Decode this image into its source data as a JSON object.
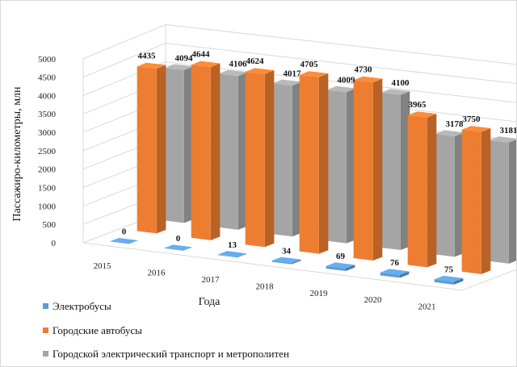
{
  "chart_data": {
    "type": "bar",
    "title": "",
    "xlabel": "Года",
    "ylabel": "Пассажиро-километры, млн",
    "ylim": [
      0,
      5000
    ],
    "yticks": [
      0,
      500,
      1000,
      1500,
      2000,
      2500,
      3000,
      3500,
      4000,
      4500,
      5000
    ],
    "grid": true,
    "legend_position": "bottom-left",
    "categories": [
      "2015",
      "2016",
      "2017",
      "2018",
      "2019",
      "2020",
      "2021"
    ],
    "series": [
      {
        "name": "Электробусы",
        "color": "#5b9bd5",
        "values": [
          0,
          0,
          13,
          34,
          69,
          76,
          75
        ],
        "labels": [
          "0",
          "0",
          "13",
          "34",
          "69",
          "76",
          "75"
        ]
      },
      {
        "name": "Городские автобусы",
        "color": "#ed7d31",
        "values": [
          4435,
          4644,
          4624,
          4705,
          4730,
          3965,
          3750
        ],
        "labels": [
          "4435",
          "4644",
          "4624",
          "4705",
          "4730",
          "3965",
          "3750"
        ]
      },
      {
        "name": "Городской электрический транспорт и метрополитен",
        "color": "#a5a5a5",
        "values": [
          4094,
          4106,
          4017,
          4009,
          4100,
          3178,
          3181
        ],
        "labels": [
          "4094",
          "4106",
          "4017",
          "4009",
          "4100",
          "3178",
          "3181"
        ]
      }
    ]
  }
}
